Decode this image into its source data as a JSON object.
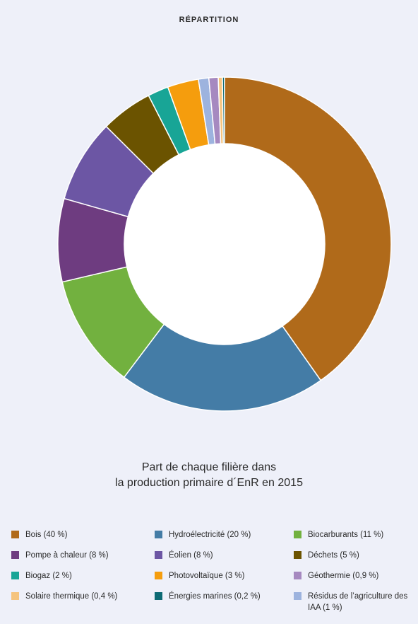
{
  "heading": "RÉPARTITION",
  "caption": {
    "line1": "Part de chaque filière dans",
    "line2": "la production primaire d´EnR en 2015"
  },
  "chart_data": {
    "type": "pie",
    "variant": "donut",
    "title": "Part de chaque filière dans la production primaire d´EnR en 2015",
    "unit": "%",
    "legend_position": "bottom",
    "slices": [
      {
        "key": "bois",
        "label": "Bois (40 %)",
        "value": 40,
        "color": "#b06a1a"
      },
      {
        "key": "hydro",
        "label": "Hydroélectricité (20 %)",
        "value": 20,
        "color": "#447ca6"
      },
      {
        "key": "biocarburants",
        "label": "Biocarburants (11 %)",
        "value": 11,
        "color": "#72b13f"
      },
      {
        "key": "pac",
        "label": "Pompe à chaleur (8 %)",
        "value": 8,
        "color": "#6e3c80"
      },
      {
        "key": "eolien",
        "label": "Éolien (8 %)",
        "value": 8,
        "color": "#6c56a4"
      },
      {
        "key": "dechets",
        "label": "Déchets (5 %)",
        "value": 5,
        "color": "#6b5300"
      },
      {
        "key": "biogaz",
        "label": "Biogaz (2 %)",
        "value": 2,
        "color": "#18a596"
      },
      {
        "key": "pv",
        "label": "Photovoltaïque (3 %)",
        "value": 3,
        "color": "#f59d0d"
      },
      {
        "key": "residus",
        "label": "Résidus de l’agriculture des IAA (1 %)",
        "value": 1,
        "color": "#9db3de"
      },
      {
        "key": "geothermie",
        "label": "Géothermie (0,9 %)",
        "value": 0.9,
        "color": "#a689c0"
      },
      {
        "key": "solaire",
        "label": "Solaire thermique (0,4 %)",
        "value": 0.4,
        "color": "#f5c47e"
      },
      {
        "key": "marines",
        "label": "Énergies marines (0,2 %)",
        "value": 0.2,
        "color": "#0d6a74"
      }
    ],
    "legend_order": [
      "bois",
      "hydro",
      "biocarburants",
      "pac",
      "eolien",
      "dechets",
      "biogaz",
      "pv",
      "geothermie",
      "solaire",
      "marines",
      "residus"
    ]
  }
}
